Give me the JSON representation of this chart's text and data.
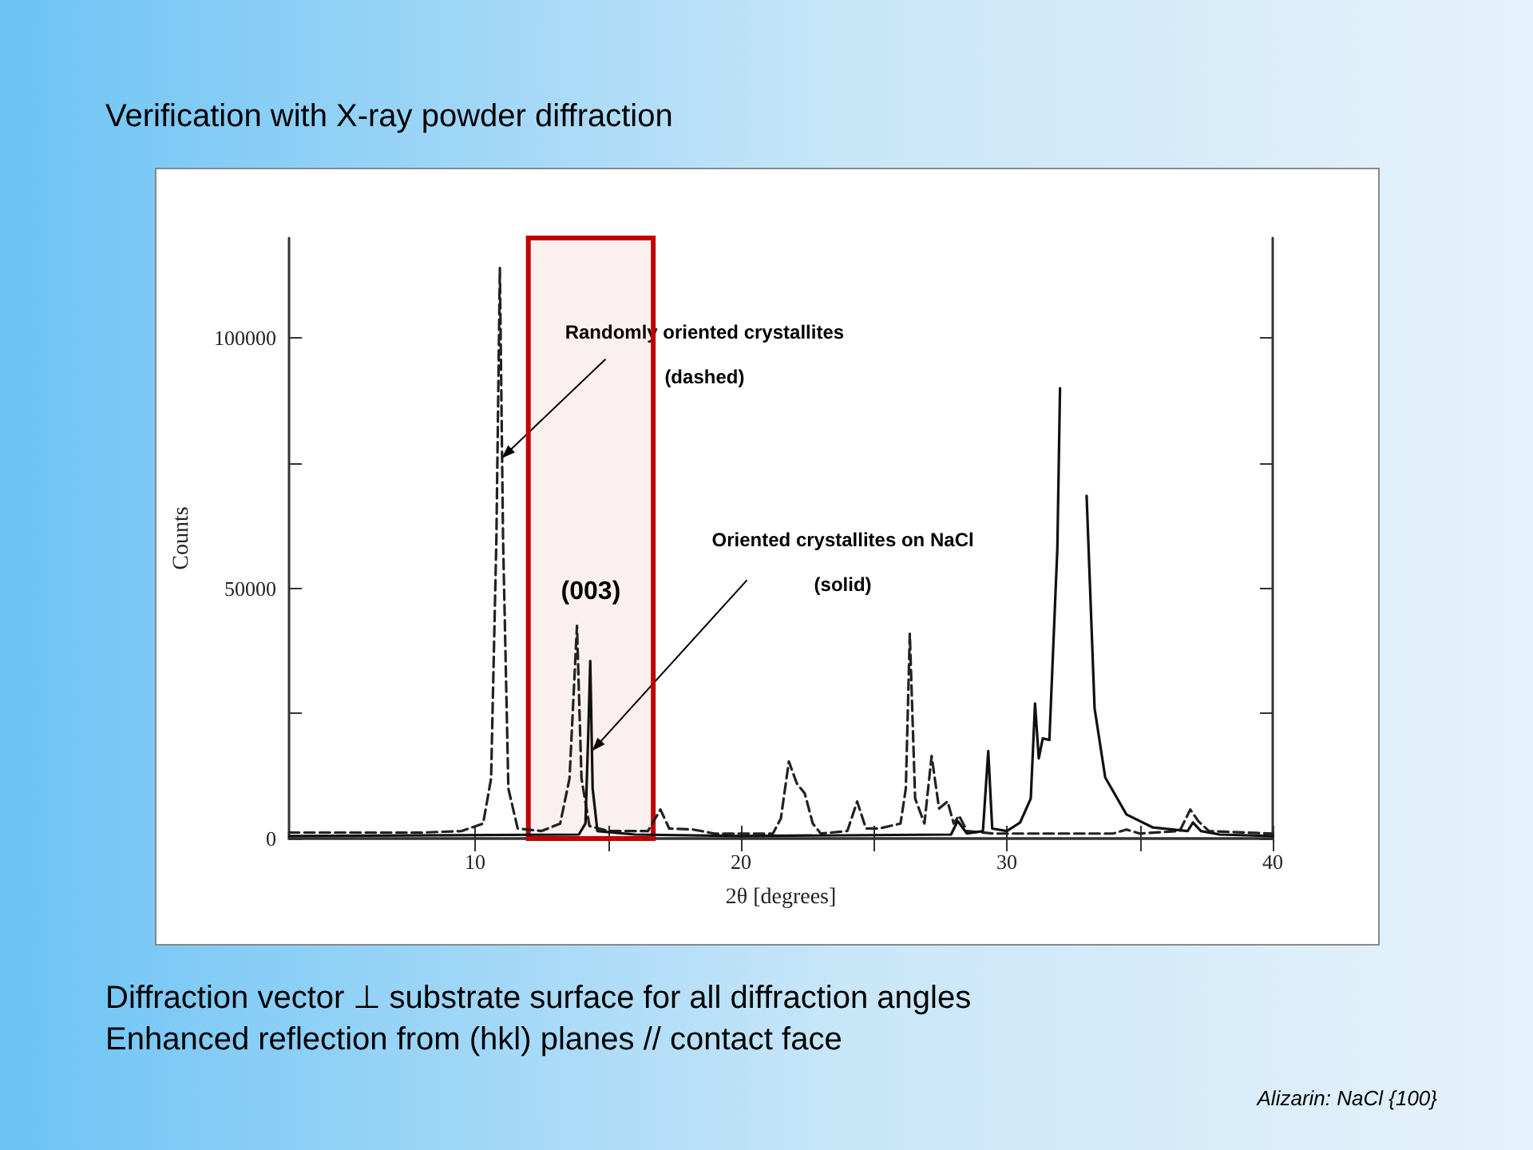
{
  "chart_data": {
    "type": "line",
    "title": "Verification with X-ray powder diffraction",
    "xlabel": "2θ [degrees]",
    "ylabel": "Counts",
    "xlim": [
      3,
      40
    ],
    "xticks": [
      10,
      {
        "value": 15,
        "label": null
      },
      20,
      {
        "value": 25,
        "label": null
      },
      30,
      {
        "value": 35,
        "label": null
      },
      40
    ],
    "ylim": [
      0,
      120000
    ],
    "yticks": [
      0,
      {
        "value": 25000,
        "label": null
      },
      50000,
      {
        "value": 75000,
        "label": null
      },
      100000
    ],
    "marker": "none",
    "series": [
      {
        "color": "#222222",
        "line_style": "dashed",
        "x": [
          3,
          8,
          9.5,
          10.3,
          10.6,
          10.8,
          10.93,
          11.05,
          11.25,
          11.6,
          12.5,
          13.2,
          13.55,
          13.83,
          14.0,
          14.3,
          15,
          16.5,
          16.97,
          17.3,
          18.2,
          19,
          21.2,
          21.5,
          21.8,
          22.1,
          22.4,
          22.7,
          23,
          24.0,
          24.37,
          24.7,
          25.2,
          26.0,
          26.2,
          26.35,
          26.55,
          26.9,
          27.17,
          27.45,
          27.77,
          28.0,
          28.2,
          28.5,
          29.5,
          34,
          34.5,
          35,
          36.5,
          36.9,
          37.2,
          37.6,
          40
        ],
        "values": [
          1200,
          1200,
          1500,
          3000,
          12000,
          60000,
          114000,
          60000,
          10000,
          2000,
          1500,
          3000,
          12000,
          42500,
          12000,
          2500,
          1500,
          1500,
          5800,
          2000,
          1800,
          1000,
          1000,
          4000,
          15400,
          11000,
          9000,
          3000,
          1000,
          1500,
          7400,
          2000,
          2000,
          3000,
          10000,
          40900,
          8000,
          3000,
          16500,
          6000,
          7400,
          3000,
          4600,
          1500,
          1000,
          1000,
          1800,
          1000,
          1500,
          5800,
          3500,
          1500,
          1000
        ]
      },
      {
        "color": "#111111",
        "line_style": "solid",
        "x": [
          3,
          13.9,
          14.15,
          14.25,
          14.33,
          14.42,
          14.6,
          16,
          20,
          27.9,
          28.15,
          28.5,
          29.1,
          29.3,
          29.45,
          30,
          30.5,
          30.9,
          31.06,
          31.2,
          31.35,
          31.6,
          31.9,
          32.0,
          32.1,
          32.8,
          33.0,
          33.3,
          33.7,
          34.5,
          35.5,
          36.8,
          37,
          37.3,
          38,
          40
        ],
        "values": [
          500,
          800,
          3000,
          20000,
          35500,
          10000,
          1500,
          800,
          500,
          800,
          3500,
          1000,
          1500,
          17500,
          2000,
          1500,
          3200,
          8000,
          27000,
          16000,
          20000,
          19700,
          58000,
          90000,
          null,
          null,
          68500,
          26000,
          12200,
          4800,
          2200,
          1500,
          3200,
          1500,
          800,
          500
        ]
      }
    ],
    "bands": [
      {
        "axis": "x",
        "from": 12,
        "to": 16.7,
        "label": "(003)",
        "color": "#c00000"
      }
    ],
    "annotations": [
      {
        "text": "Randomly oriented crystallites\n(dashed)",
        "x": 11,
        "y": 76000
      },
      {
        "text": "Oriented crystallites on NaCl\n(solid)",
        "x": 14.4,
        "y": 17500
      },
      "Diffraction vector ⊥ substrate surface for all diffraction angles",
      "Enhanced reflection from (hkl) planes // contact face",
      "Alizarin: NaCl {100}"
    ]
  }
}
